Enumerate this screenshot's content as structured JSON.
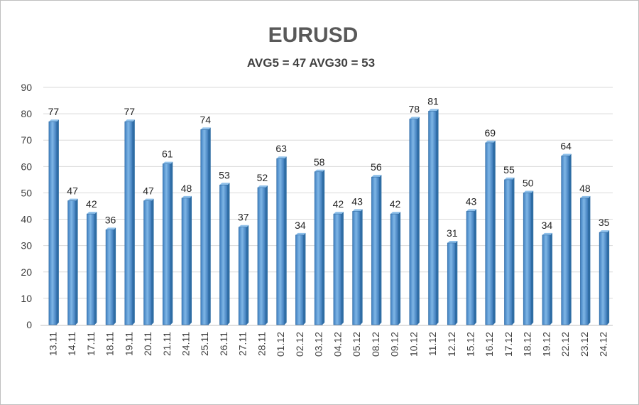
{
  "chart_data": {
    "type": "bar",
    "title": "EURUSD",
    "subtitle": "AVG5 = 47 AVG30 = 53",
    "categories": [
      "13.11",
      "14.11",
      "17.11",
      "18.11",
      "19.11",
      "20.11",
      "21.11",
      "24.11",
      "25.11",
      "26.11",
      "27.11",
      "28.11",
      "01.12",
      "02.12",
      "03.12",
      "04.12",
      "05.12",
      "08.12",
      "09.12",
      "10.12",
      "11.12",
      "12.12",
      "15.12",
      "16.12",
      "17.12",
      "18.12",
      "19.12",
      "22.12",
      "23.12",
      "24.12"
    ],
    "values": [
      77,
      47,
      42,
      36,
      77,
      47,
      61,
      48,
      74,
      53,
      37,
      52,
      63,
      34,
      58,
      42,
      43,
      56,
      42,
      78,
      81,
      31,
      43,
      69,
      55,
      50,
      34,
      64,
      48,
      35
    ],
    "y_ticks": [
      0,
      10,
      20,
      30,
      40,
      50,
      60,
      70,
      80,
      90
    ],
    "ylim": [
      0,
      90
    ],
    "grid": true,
    "legend": "none",
    "bar_color": "#5b9bd5",
    "bar_dark": "#2e6da4",
    "grid_color": "#d9d9d9"
  }
}
